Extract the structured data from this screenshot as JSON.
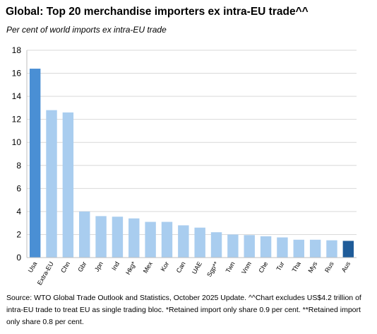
{
  "title": "Global: Top 20 merchandise importers ex intra-EU trade^^",
  "subtitle": "Per cent of world imports ex intra-EU trade",
  "source": "Source: WTO Global Trade Outlook and Statistics, October 2025 Update. ^^Chart excludes US$4.2 trillion of intra-EU trade to treat EU as single trading bloc. *Retained import only share 0.9 per cent. **Retained import only share 0.8 per cent.",
  "colors": {
    "highlight_dark": "#1f5c99",
    "highlight_mid": "#4a8fd4",
    "default_bar": "#a9cdef",
    "grid": "#d9d9d9",
    "axis": "#bfbfbf"
  },
  "chart_data": {
    "type": "bar",
    "categories": [
      "Usa",
      "Extra-EU",
      "Chn",
      "Gbr",
      "Jpn",
      "Ind",
      "Hkg*",
      "Mex",
      "Kor",
      "Can",
      "UAE",
      "Sgp**",
      "Twn",
      "Vnm",
      "Che",
      "Tur",
      "Tha",
      "Mys",
      "Rus",
      "Aus"
    ],
    "values": [
      16.4,
      12.8,
      12.6,
      4.0,
      3.6,
      3.55,
      3.4,
      3.1,
      3.1,
      2.8,
      2.6,
      2.2,
      2.0,
      1.95,
      1.85,
      1.75,
      1.55,
      1.55,
      1.5,
      1.45
    ],
    "bar_colors": [
      "highlight_mid",
      "default_bar",
      "default_bar",
      "default_bar",
      "default_bar",
      "default_bar",
      "default_bar",
      "default_bar",
      "default_bar",
      "default_bar",
      "default_bar",
      "default_bar",
      "default_bar",
      "default_bar",
      "default_bar",
      "default_bar",
      "default_bar",
      "default_bar",
      "default_bar",
      "highlight_dark"
    ],
    "title": "Global: Top 20 merchandise importers ex intra-EU trade^^",
    "subtitle": "Per cent of world imports ex intra-EU trade",
    "ylim": [
      0,
      18
    ],
    "yticks": [
      0,
      2,
      4,
      6,
      8,
      10,
      12,
      14,
      16,
      18
    ],
    "grid": true,
    "legend": "none"
  }
}
